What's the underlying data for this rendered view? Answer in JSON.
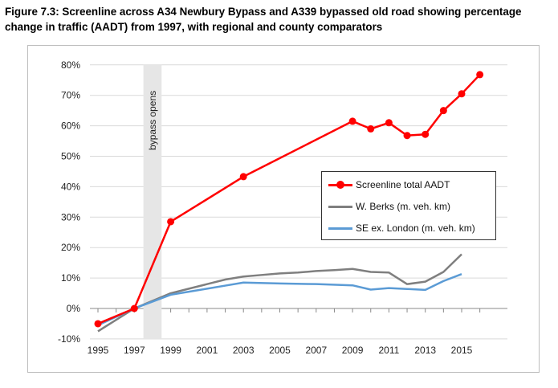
{
  "title": "Figure 7.3: Screenline across A34 Newbury Bypass and A339 bypassed old road showing percentage change in traffic (AADT) from 1997, with regional and county comparators",
  "chart_data": {
    "type": "line",
    "xlabel": "",
    "ylabel": "",
    "xlim": [
      1995,
      2016
    ],
    "ylim": [
      -10,
      80
    ],
    "y_ticks": [
      "-10%",
      "0%",
      "10%",
      "20%",
      "30%",
      "40%",
      "50%",
      "60%",
      "70%",
      "80%"
    ],
    "x_ticks": [
      "1995",
      "1997",
      "1999",
      "2001",
      "2003",
      "2005",
      "2007",
      "2009",
      "2011",
      "2013",
      "2015"
    ],
    "grid": true,
    "legend_position": "right",
    "annotation": {
      "text": "bypass opens",
      "x_range": [
        1997.5,
        1998.5
      ]
    },
    "series": [
      {
        "name": "Screenline total AADT",
        "color": "#ff0000",
        "markers": true,
        "x": [
          1995,
          1997,
          1999,
          2003,
          2009,
          2010,
          2011,
          2012,
          2013,
          2014,
          2015,
          2016
        ],
        "y": [
          -5,
          0,
          28.5,
          43.3,
          61.5,
          59,
          61,
          56.8,
          57.2,
          65,
          70.5,
          76.8
        ]
      },
      {
        "name": "W. Berks (m. veh. km)",
        "color": "#7f7f7f",
        "markers": false,
        "x": [
          1995,
          1997,
          1999,
          2000,
          2001,
          2002,
          2003,
          2004,
          2005,
          2006,
          2007,
          2008,
          2009,
          2010,
          2011,
          2012,
          2013,
          2014,
          2015
        ],
        "y": [
          -7.5,
          0,
          5,
          6.5,
          8,
          9.5,
          10.5,
          11,
          11.5,
          11.8,
          12.3,
          12.6,
          13,
          12,
          11.8,
          8,
          8.8,
          12,
          17.8
        ]
      },
      {
        "name": "SE ex. London (m. veh. km)",
        "color": "#5b9bd5",
        "markers": false,
        "x": [
          1995,
          1997,
          1999,
          2000,
          2001,
          2002,
          2003,
          2005,
          2007,
          2009,
          2010,
          2011,
          2012,
          2013,
          2014,
          2015
        ],
        "y": [
          -5.5,
          0,
          4.5,
          5.5,
          6.5,
          7.5,
          8.5,
          8.2,
          8,
          7.6,
          6.2,
          6.7,
          6.4,
          6.1,
          9,
          11.3
        ]
      }
    ]
  }
}
